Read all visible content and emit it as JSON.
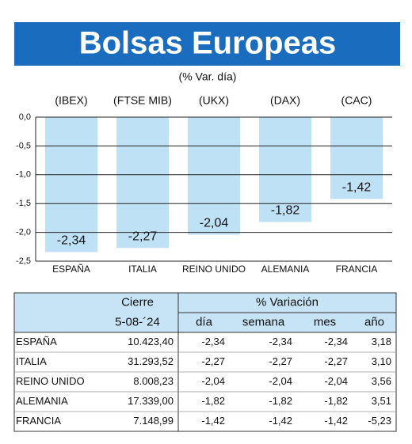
{
  "chart_data": {
    "type": "bar",
    "title": "Bolsas Europeas",
    "subtitle": "(% Var. día)",
    "categories": [
      "ESPAÑA",
      "ITALIA",
      "REINO UNIDO",
      "ALEMANIA",
      "FRANCIA"
    ],
    "index_labels": [
      "(IBEX)",
      "(FTSE MIB)",
      "(UKX)",
      "(DAX)",
      "(CAC)"
    ],
    "values": [
      -2.34,
      -2.27,
      -2.04,
      -1.82,
      -1.42
    ],
    "value_labels": [
      "-2,34",
      "-2,27",
      "-2,04",
      "-1,82",
      "-1,42"
    ],
    "color": "#bfe1f6",
    "ylim": [
      -2.5,
      0
    ],
    "yticks": [
      {
        "value": 0,
        "label": "0,0"
      },
      {
        "value": -0.5,
        "label": "-0,5"
      },
      {
        "value": -1,
        "label": "-1,0"
      },
      {
        "value": -1.5,
        "label": "-1,5"
      },
      {
        "value": -2,
        "label": "-2,0"
      },
      {
        "value": -2.5,
        "label": "-2,5"
      }
    ],
    "grid": true
  },
  "table": {
    "header": [
      "Cierre",
      "% Variación"
    ],
    "subheader": [
      "5-08-´24",
      "día",
      "semana",
      "mes",
      "año"
    ],
    "rows": [
      [
        "ESPAÑA",
        "10.423,40",
        "-2,34",
        "-2,34",
        "-2,34",
        "3,18"
      ],
      [
        "ITALIA",
        "31.293,52",
        "-2,27",
        "-2,27",
        "-2,27",
        "3,10"
      ],
      [
        "REINO UNIDO",
        "8.008,23",
        "-2,04",
        "-2,04",
        "-2,04",
        "3,56"
      ],
      [
        "ALEMANIA",
        "17.339,00",
        "-1,82",
        "-1,82",
        "-1,82",
        "3,51"
      ],
      [
        "FRANCIA",
        "7.148,99",
        "-1,42",
        "-1,42",
        "-1,42",
        "-5,23"
      ]
    ]
  }
}
